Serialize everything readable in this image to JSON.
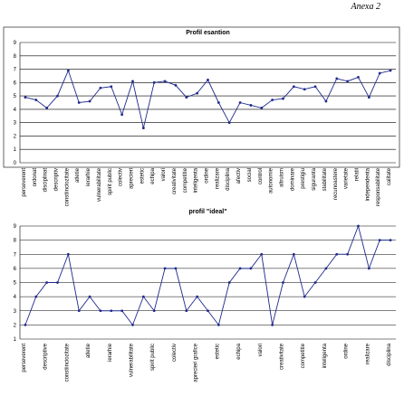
{
  "header": {
    "title": "Anexa 2"
  },
  "chart_data": [
    {
      "type": "line",
      "title": "Profil esantion",
      "color": "#1f2a8c",
      "categories": [
        "perseverent",
        "ordonat",
        "disciplinat",
        "descriptiv",
        "constiinciozitate",
        "atletie",
        "ierarhie",
        "vulnerabilitate",
        "spirit public",
        "colectiv",
        "aprecieri",
        "estetic",
        "echipa",
        "valori",
        "creativitate",
        "competitie",
        "inteligenta",
        "ordine",
        "realizare",
        "disciplina",
        "afectiv",
        "social",
        "control",
        "autonomie",
        "altruism",
        "dominare",
        "prestigiu",
        "siguranta",
        "stabilitate",
        "recunoastere",
        "varietate",
        "relatii",
        "independenta",
        "responsabilitate",
        "calitate"
      ],
      "values": [
        4.9,
        4.7,
        4.1,
        5.0,
        6.9,
        4.5,
        4.6,
        5.6,
        5.7,
        3.6,
        6.1,
        2.6,
        6.0,
        6.1,
        5.8,
        4.9,
        5.2,
        6.2,
        4.5,
        3.0,
        4.5,
        4.3,
        4.1,
        4.7,
        4.8,
        5.7,
        5.5,
        5.7,
        4.6,
        6.3,
        6.1,
        6.4,
        4.9,
        6.7,
        6.9
      ],
      "ylim": [
        0,
        9
      ],
      "yticks": [
        0,
        1,
        2,
        3,
        4,
        5,
        6,
        7,
        8,
        9
      ],
      "grid": true
    },
    {
      "type": "line",
      "title": "profil \"ideal\"",
      "color": "#1f2a8c",
      "categories": [
        "perseverent",
        null,
        "descriptive",
        null,
        "constiinciozitate",
        null,
        "atletie",
        null,
        "ierarhie",
        null,
        "vulnerabilitate",
        null,
        "spirit public",
        null,
        "colectiv",
        null,
        "aprecieri grafice",
        null,
        "estetic",
        null,
        "echipa",
        null,
        "valori",
        null,
        "creativitate",
        null,
        "competitie",
        null,
        "inteligenta",
        null,
        "ordine",
        null,
        "realizare",
        null,
        "disciplina"
      ],
      "values": [
        2,
        4,
        5,
        5,
        7,
        3,
        4,
        3,
        3,
        3,
        2,
        4,
        3,
        6,
        6,
        3,
        4,
        3,
        2,
        5,
        6,
        6,
        7,
        2,
        5,
        7,
        4,
        5,
        6,
        7,
        7,
        9,
        6,
        8,
        8
      ],
      "ylim": [
        1,
        9
      ],
      "yticks": [
        1,
        2,
        3,
        4,
        5,
        6,
        7,
        8,
        9
      ],
      "grid": true
    }
  ]
}
